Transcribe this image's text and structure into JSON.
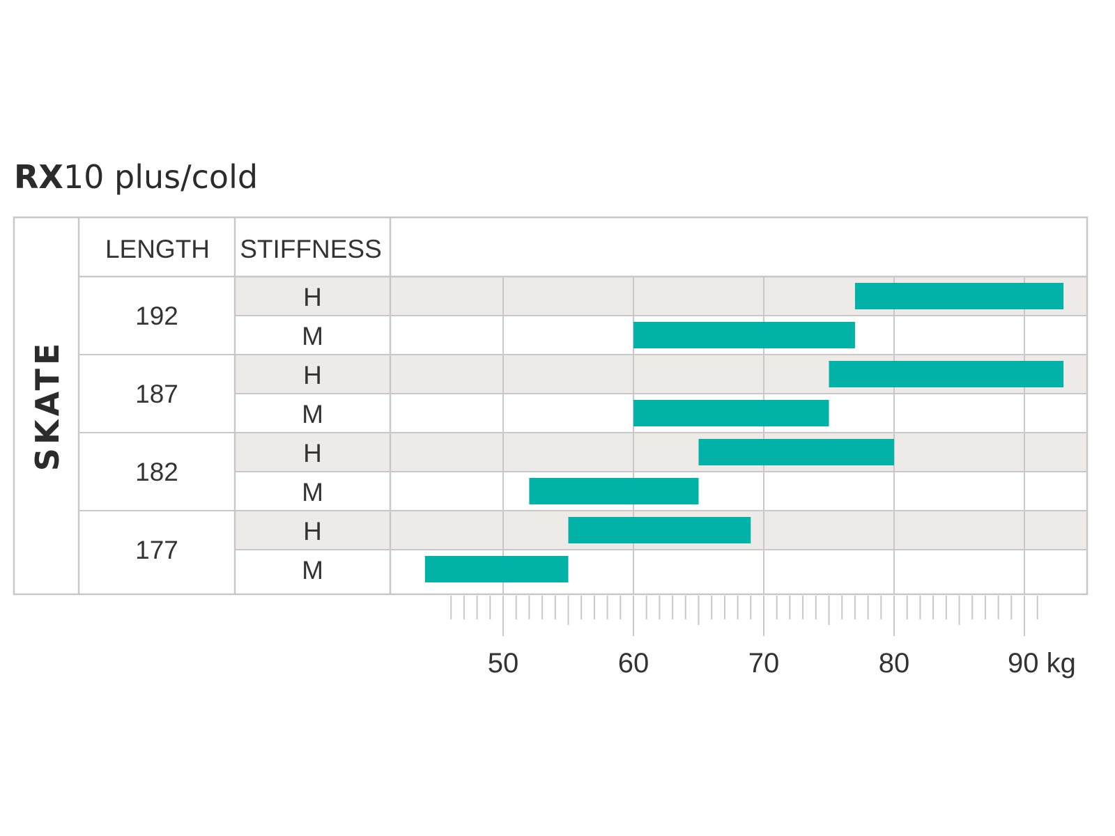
{
  "title": {
    "bold": "RX",
    "rest": "10  plus/cold"
  },
  "side_label": "SKATE",
  "headers": {
    "length": "LENGTH",
    "stiffness": "STIFFNESS"
  },
  "colors": {
    "bar": "#00b3a6",
    "shade": "#eeeae8",
    "grid": "#c8c8c8",
    "text": "#333333"
  },
  "chart_data": {
    "type": "bar",
    "orientation": "horizontal-range",
    "xlabel": "kg",
    "xlim": [
      41,
      94
    ],
    "xticks": [
      50,
      60,
      70,
      80,
      90
    ],
    "tick_labels": [
      "50",
      "60",
      "70",
      "80",
      "90 kg"
    ],
    "groups": [
      {
        "length": "192",
        "rows": [
          {
            "stiffness": "H",
            "min": 77,
            "max": 93
          },
          {
            "stiffness": "M",
            "min": 60,
            "max": 77
          }
        ]
      },
      {
        "length": "187",
        "rows": [
          {
            "stiffness": "H",
            "min": 75,
            "max": 93
          },
          {
            "stiffness": "M",
            "min": 60,
            "max": 75
          }
        ]
      },
      {
        "length": "182",
        "rows": [
          {
            "stiffness": "H",
            "min": 65,
            "max": 80
          },
          {
            "stiffness": "M",
            "min": 52,
            "max": 65
          }
        ]
      },
      {
        "length": "177",
        "rows": [
          {
            "stiffness": "H",
            "min": 55,
            "max": 69
          },
          {
            "stiffness": "M",
            "min": 44,
            "max": 55
          }
        ]
      }
    ]
  }
}
